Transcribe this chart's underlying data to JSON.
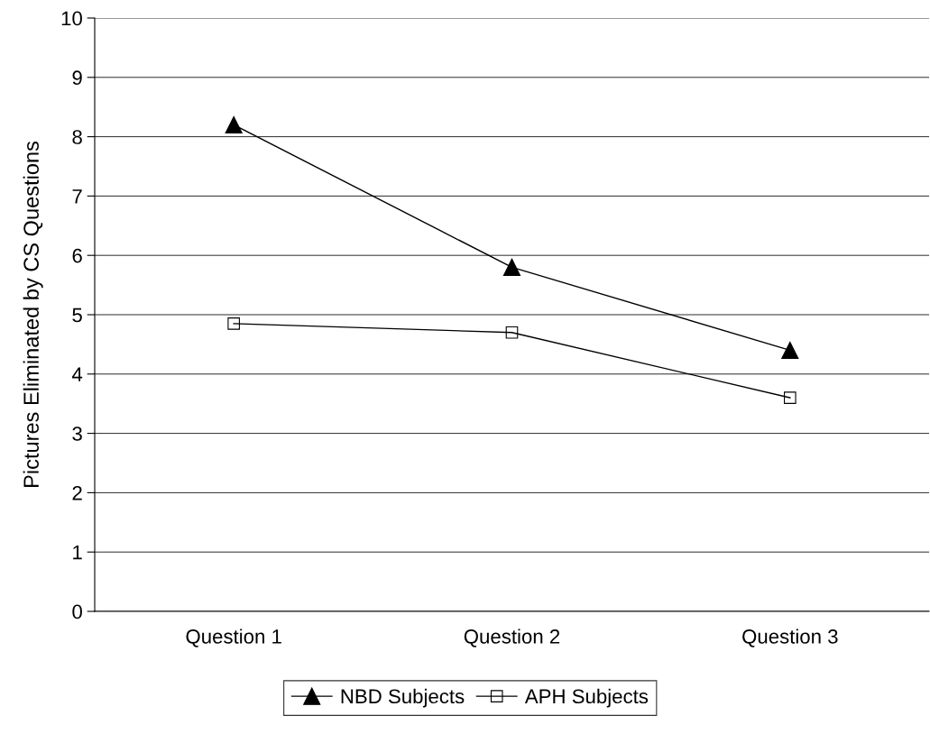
{
  "chart_data": {
    "type": "line",
    "ylabel": "Pictures Eliminated by CS Questions",
    "categories": [
      "Question 1",
      "Question 2",
      "Question 3"
    ],
    "series": [
      {
        "name": "NBD Subjects",
        "color": "#000000",
        "marker": "triangle",
        "values": [
          8.2,
          5.8,
          4.4
        ]
      },
      {
        "name": "APH Subjects",
        "color": "#000000",
        "marker": "square",
        "values": [
          4.85,
          4.7,
          3.6
        ]
      }
    ],
    "ylim": [
      0,
      10
    ],
    "yticks": [
      0,
      1,
      2,
      3,
      4,
      5,
      6,
      7,
      8,
      9,
      10
    ],
    "grid": "y",
    "legend": "bottom",
    "line_style": "solid"
  }
}
